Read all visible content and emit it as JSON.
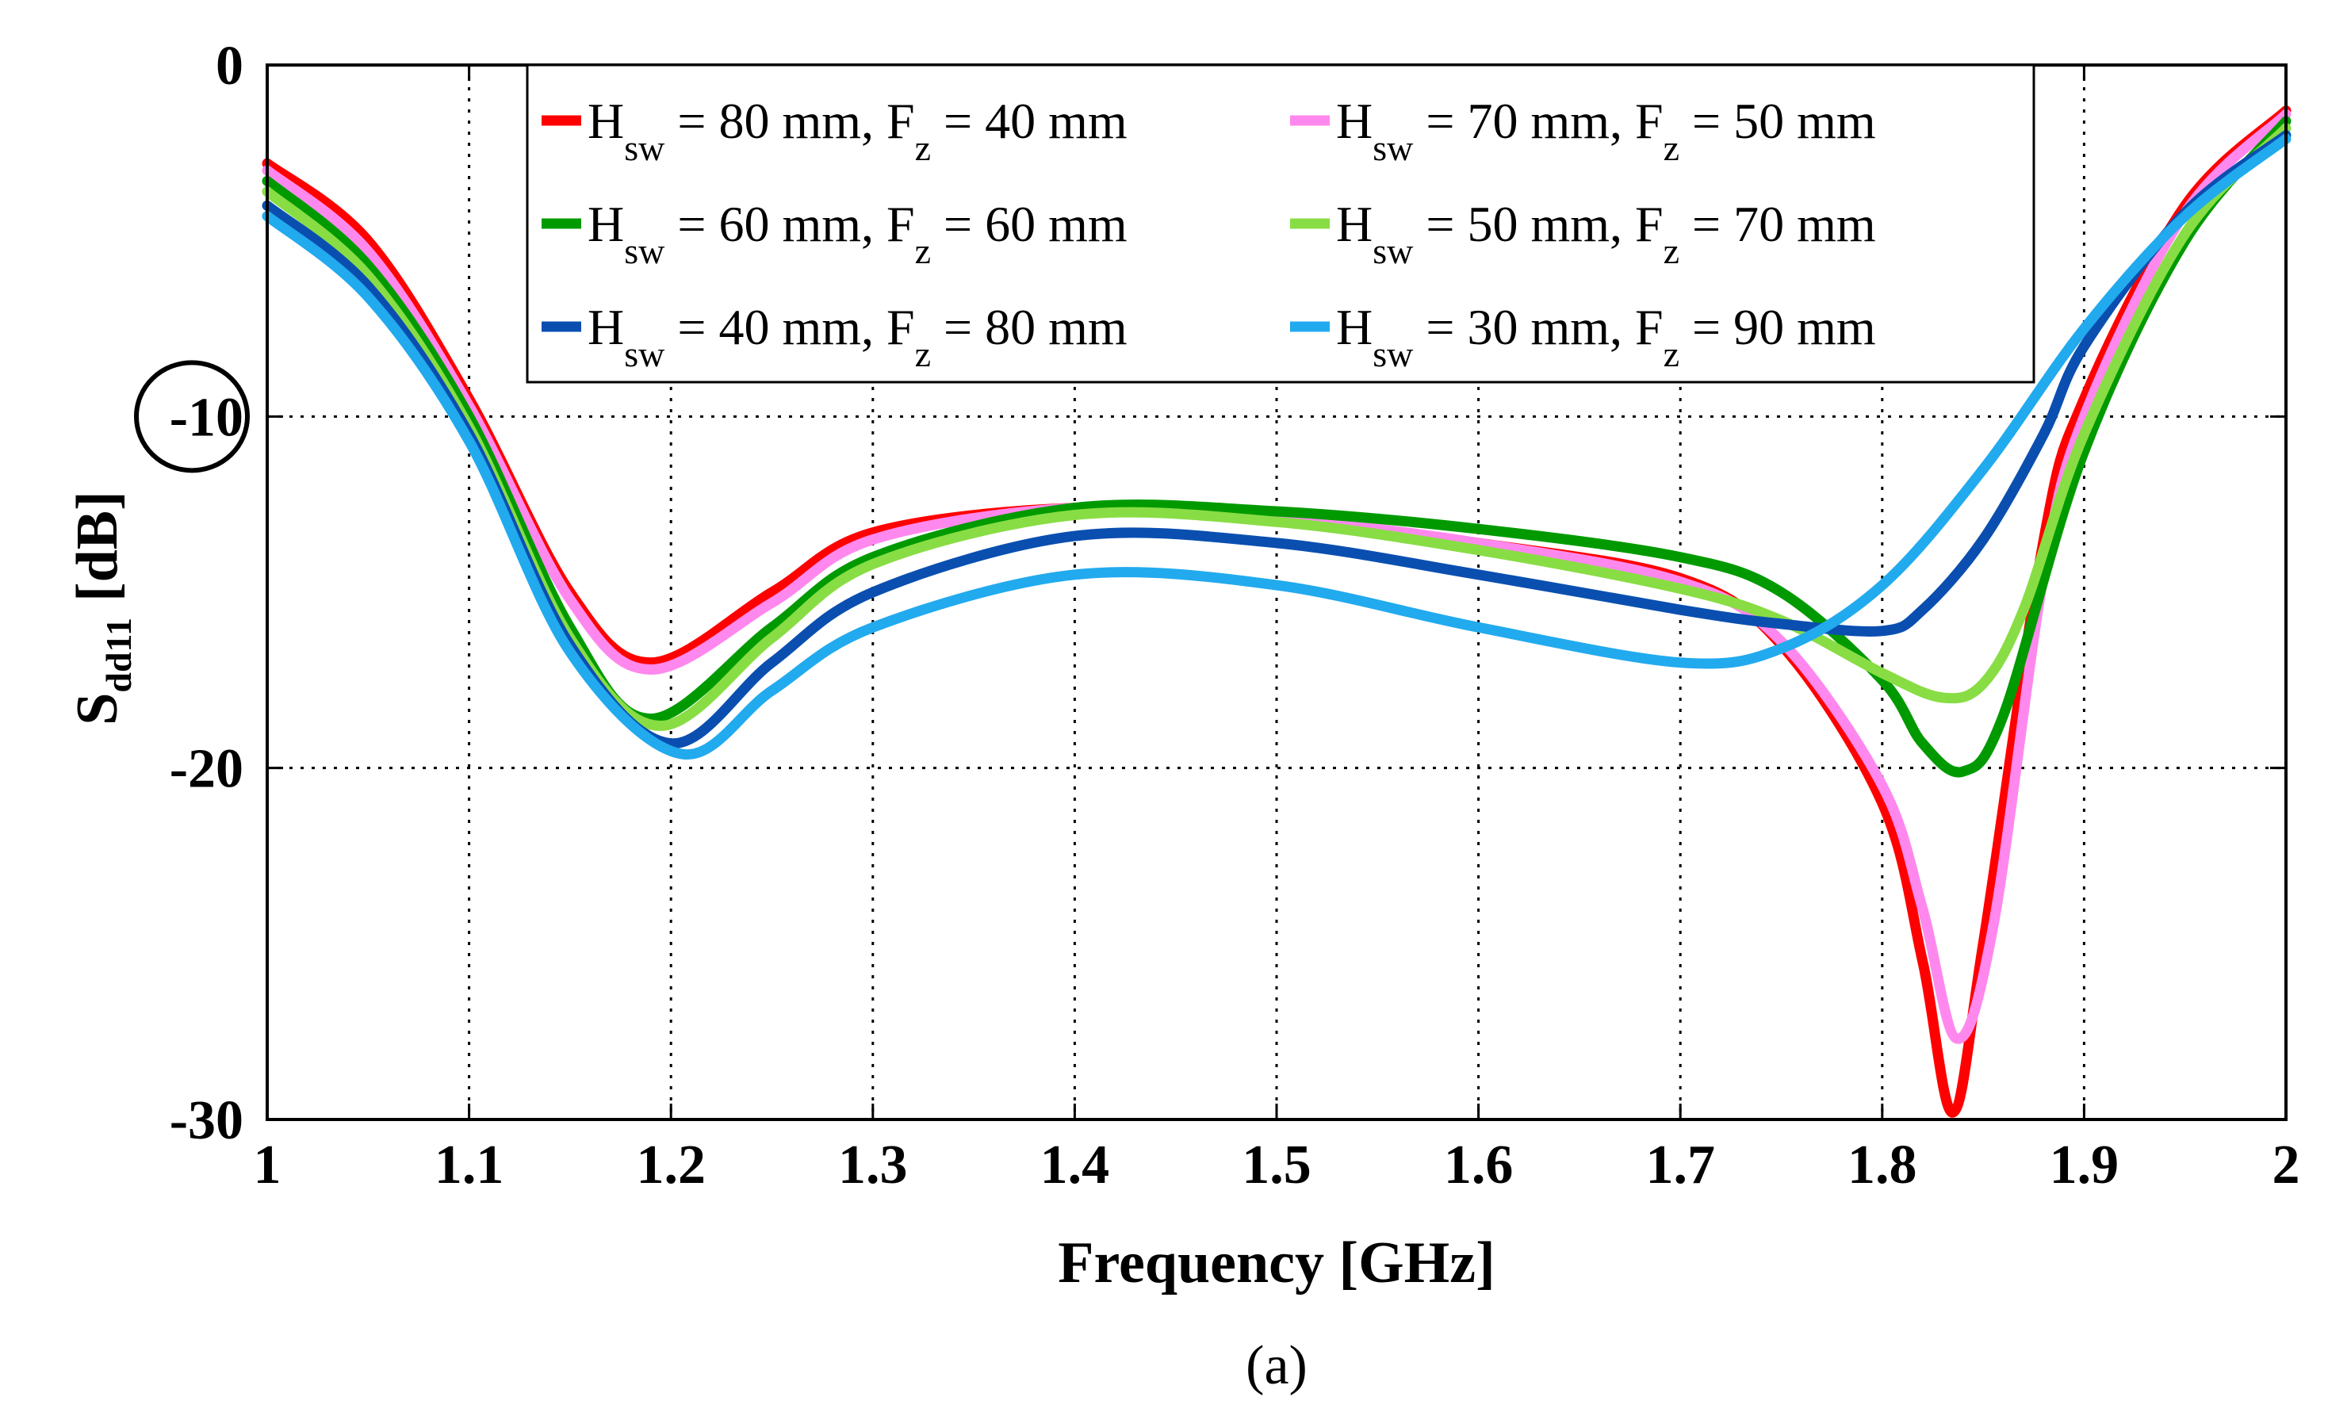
{
  "chart_data": {
    "type": "line",
    "title": "",
    "xlabel": "Frequency [GHz]",
    "ylabel_main": "S",
    "ylabel_sub": "dd11",
    "ylabel_unit": "[dB]",
    "caption": "(a)",
    "xlim": [
      1,
      2
    ],
    "ylim": [
      -30,
      0
    ],
    "x_ticks": [
      1,
      1.1,
      1.2,
      1.3,
      1.4,
      1.5,
      1.6,
      1.7,
      1.8,
      1.9,
      2
    ],
    "x_tick_labels": [
      "1",
      "1.1",
      "1.2",
      "1.3",
      "1.4",
      "1.5",
      "1.6",
      "1.7",
      "1.8",
      "1.9",
      "2"
    ],
    "y_ticks": [
      0,
      -10,
      -20,
      -30
    ],
    "y_tick_labels": [
      "0",
      "-10",
      "-20",
      "-30"
    ],
    "highlighted_y_tick": -10,
    "grid": true,
    "legend_position": "top",
    "series": [
      {
        "name": "H_sw = 80 mm, F_z = 40 mm",
        "legend": {
          "a": "H",
          "a_sub": "sw",
          "b": " = 80 mm, F",
          "b_sub": "z",
          "c": " = 40 mm"
        },
        "color": "#ff0000",
        "x": [
          1.0,
          1.05,
          1.1,
          1.15,
          1.19,
          1.25,
          1.3,
          1.4,
          1.5,
          1.6,
          1.7,
          1.75,
          1.8,
          1.82,
          1.835,
          1.85,
          1.88,
          1.9,
          1.95,
          2.0
        ],
        "y": [
          -2.8,
          -5.0,
          -9.5,
          -15.0,
          -17.0,
          -15.0,
          -13.3,
          -12.6,
          -12.9,
          -13.6,
          -14.6,
          -16.5,
          -21.0,
          -25.5,
          -29.8,
          -25.0,
          -13.5,
          -9.5,
          -4.0,
          -1.3
        ]
      },
      {
        "name": "H_sw = 70 mm, F_z = 50 mm",
        "legend": {
          "a": "H",
          "a_sub": "sw",
          "b": " = 70 mm, F",
          "b_sub": "z",
          "c": " = 50 mm"
        },
        "color": "#ff88ee",
        "x": [
          1.0,
          1.05,
          1.1,
          1.15,
          1.19,
          1.25,
          1.3,
          1.4,
          1.5,
          1.6,
          1.7,
          1.75,
          1.8,
          1.82,
          1.837,
          1.855,
          1.88,
          1.9,
          1.95,
          2.0
        ],
        "y": [
          -3.0,
          -5.3,
          -9.7,
          -15.2,
          -17.2,
          -15.3,
          -13.5,
          -12.6,
          -12.9,
          -13.6,
          -14.7,
          -16.4,
          -20.5,
          -24.0,
          -27.7,
          -24.5,
          -14.5,
          -10.0,
          -4.2,
          -1.4
        ]
      },
      {
        "name": "H_sw = 60 mm, F_z = 60 mm",
        "legend": {
          "a": "H",
          "a_sub": "sw",
          "b": " = 60 mm, F",
          "b_sub": "z",
          "c": " = 60 mm"
        },
        "color": "#009a00",
        "x": [
          1.0,
          1.05,
          1.1,
          1.15,
          1.19,
          1.25,
          1.3,
          1.4,
          1.5,
          1.6,
          1.7,
          1.75,
          1.8,
          1.82,
          1.84,
          1.86,
          1.9,
          1.95,
          2.0
        ],
        "y": [
          -3.3,
          -5.7,
          -10.0,
          -16.0,
          -18.6,
          -16.0,
          -14.0,
          -12.6,
          -12.7,
          -13.2,
          -14.0,
          -15.0,
          -17.5,
          -19.3,
          -20.1,
          -18.5,
          -11.0,
          -5.0,
          -1.6
        ]
      },
      {
        "name": "H_sw = 50 mm, F_z = 70 mm",
        "legend": {
          "a": "H",
          "a_sub": "sw",
          "b": " = 50 mm, F",
          "b_sub": "z",
          "c": " = 70 mm"
        },
        "color": "#88dd44",
        "x": [
          1.0,
          1.05,
          1.1,
          1.15,
          1.195,
          1.25,
          1.3,
          1.4,
          1.5,
          1.6,
          1.7,
          1.75,
          1.8,
          1.83,
          1.85,
          1.87,
          1.9,
          1.95,
          2.0
        ],
        "y": [
          -3.6,
          -6.0,
          -10.3,
          -16.3,
          -18.8,
          -16.3,
          -14.2,
          -12.8,
          -13.0,
          -13.8,
          -14.9,
          -15.8,
          -17.3,
          -18.0,
          -17.6,
          -15.5,
          -10.5,
          -4.8,
          -1.8
        ]
      },
      {
        "name": "H_sw = 40 mm, F_z = 80 mm",
        "legend": {
          "a": "H",
          "a_sub": "sw",
          "b": " = 40 mm, F",
          "b_sub": "z",
          "c": " = 80 mm"
        },
        "color": "#0a4fb0",
        "x": [
          1.0,
          1.05,
          1.1,
          1.15,
          1.2,
          1.25,
          1.3,
          1.4,
          1.5,
          1.6,
          1.7,
          1.75,
          1.8,
          1.82,
          1.85,
          1.88,
          1.9,
          1.95,
          2.0
        ],
        "y": [
          -4.0,
          -6.3,
          -10.5,
          -16.5,
          -19.3,
          -17.0,
          -15.0,
          -13.4,
          -13.6,
          -14.5,
          -15.5,
          -15.9,
          -16.1,
          -15.5,
          -13.5,
          -10.5,
          -8.0,
          -4.2,
          -2.0
        ]
      },
      {
        "name": "H_sw = 30 mm, F_z = 90 mm",
        "legend": {
          "a": "H",
          "a_sub": "sw",
          "b": " = 30 mm, F",
          "b_sub": "z",
          "c": " = 90 mm"
        },
        "color": "#22aaee",
        "x": [
          1.0,
          1.05,
          1.1,
          1.15,
          1.205,
          1.25,
          1.3,
          1.4,
          1.5,
          1.6,
          1.7,
          1.75,
          1.8,
          1.85,
          1.9,
          1.95,
          2.0
        ],
        "y": [
          -4.3,
          -6.6,
          -10.7,
          -16.7,
          -19.6,
          -17.8,
          -16.0,
          -14.5,
          -14.8,
          -16.0,
          -17.0,
          -16.6,
          -14.8,
          -11.5,
          -7.5,
          -4.3,
          -2.1
        ]
      }
    ]
  }
}
